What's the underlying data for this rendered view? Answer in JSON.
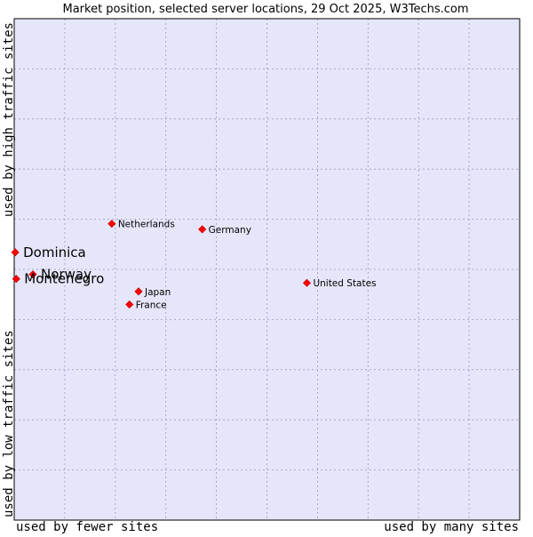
{
  "chart_data": {
    "type": "scatter",
    "title": "Market position, selected server locations, 29 Oct 2025, W3Techs.com",
    "xlabel_left": "used by fewer sites",
    "xlabel_right": "used by many sites",
    "ylabel_top": "used by high traffic sites",
    "ylabel_bottom": "used by low traffic sites",
    "grid": true,
    "xlim": [
      0,
      100
    ],
    "ylim": [
      0,
      100
    ],
    "colors": {
      "plot_background": "#e6e6fa",
      "grid": "#9999bb",
      "frame": "#000000",
      "marker": "#ff0000"
    },
    "points": [
      {
        "name": "Netherlands",
        "x": 19.3,
        "y": 59.1,
        "label_size": "small"
      },
      {
        "name": "Germany",
        "x": 37.2,
        "y": 58.0,
        "label_size": "small"
      },
      {
        "name": "Dominica",
        "x": 0.2,
        "y": 53.4,
        "label_size": "large"
      },
      {
        "name": "Norway",
        "x": 3.7,
        "y": 49.0,
        "label_size": "large"
      },
      {
        "name": "Montenegro",
        "x": 0.4,
        "y": 48.1,
        "label_size": "large"
      },
      {
        "name": "United States",
        "x": 57.9,
        "y": 47.3,
        "label_size": "small"
      },
      {
        "name": "Japan",
        "x": 24.6,
        "y": 45.6,
        "label_size": "small"
      },
      {
        "name": "France",
        "x": 22.8,
        "y": 43.0,
        "label_size": "small"
      }
    ]
  }
}
